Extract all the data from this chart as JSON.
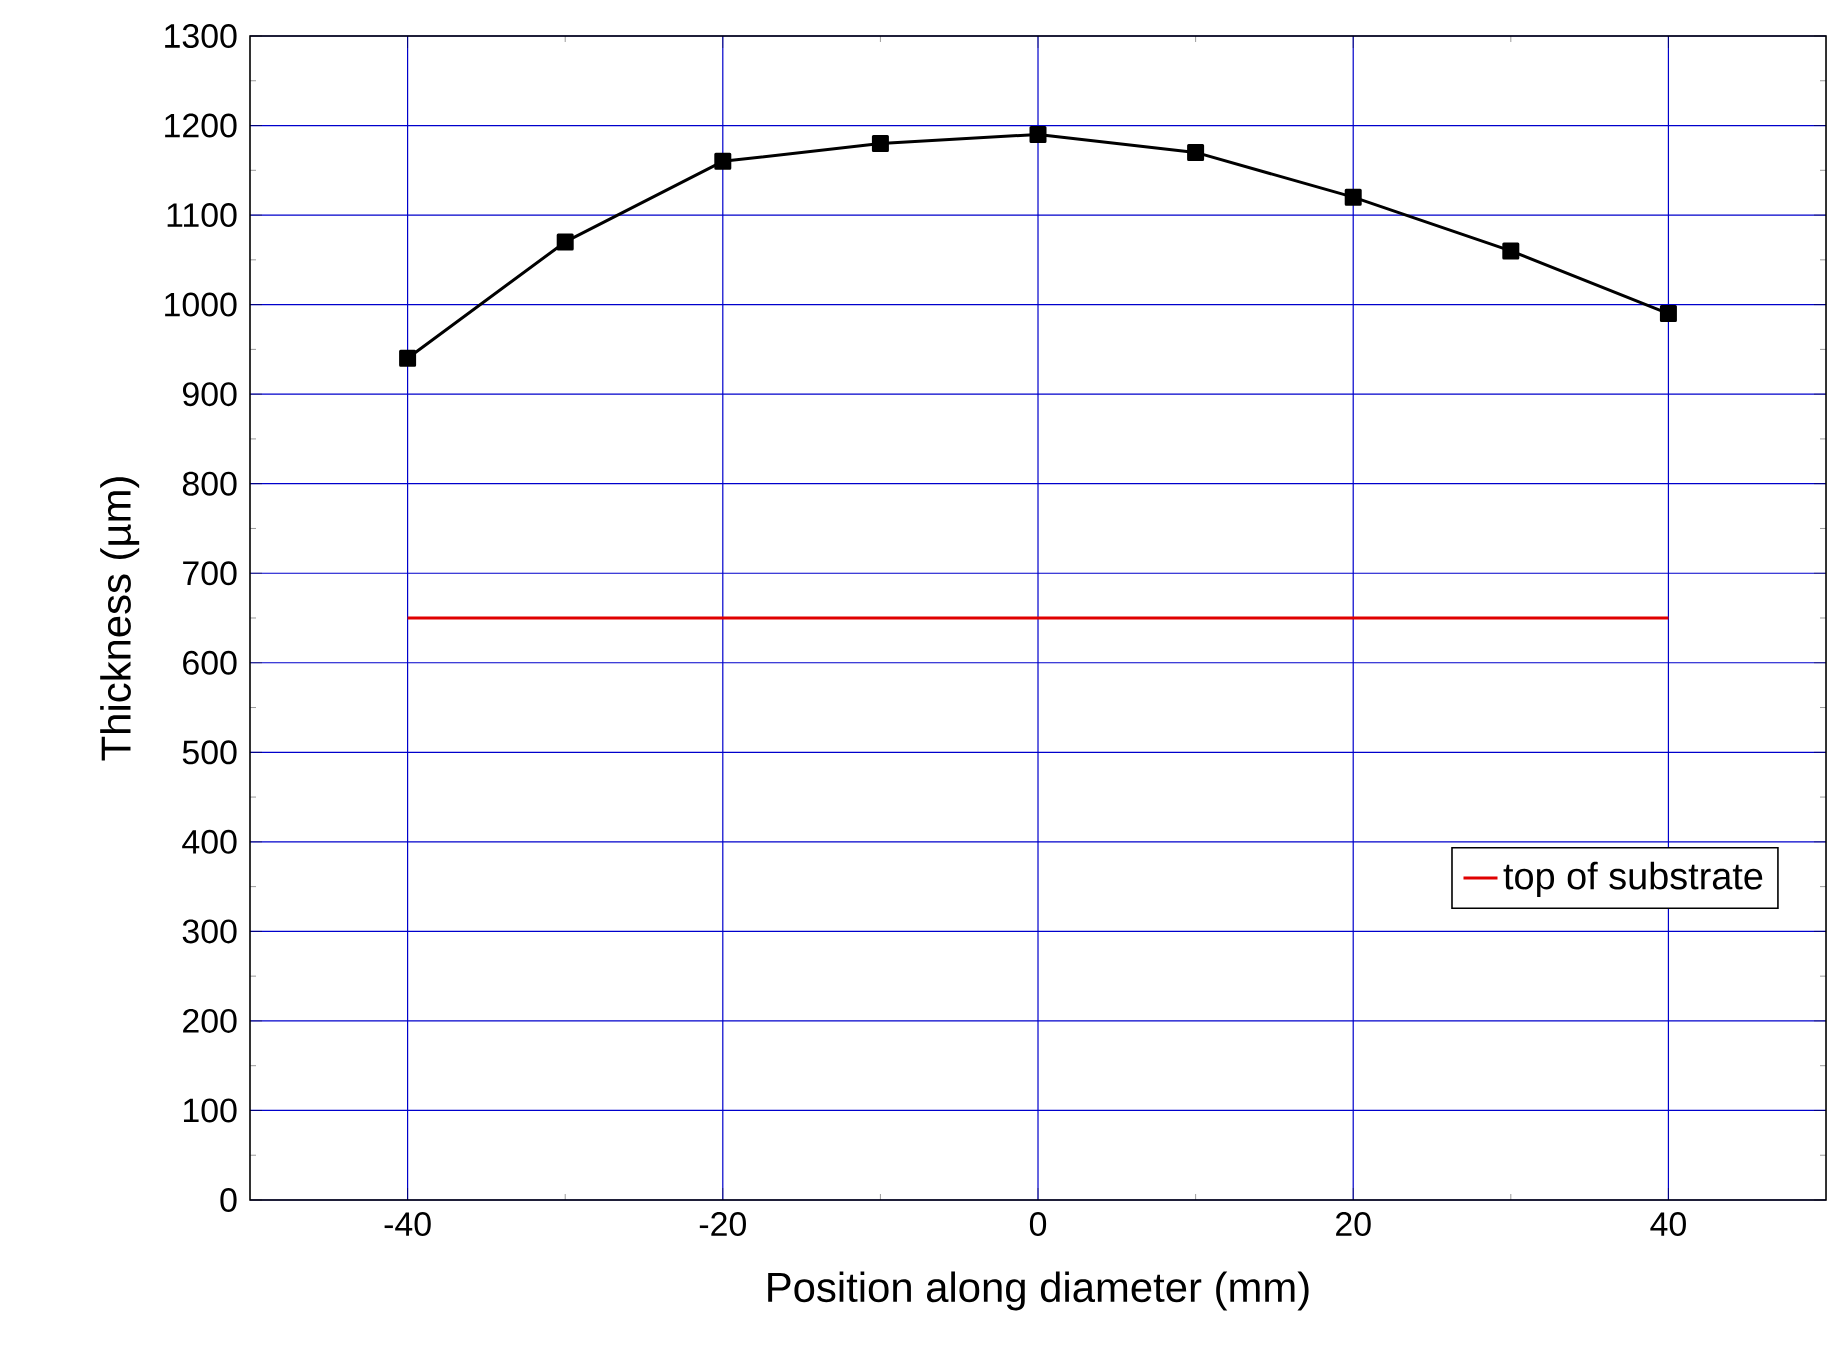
{
  "chart_data": {
    "type": "line",
    "xlabel": "Position along diameter (mm)",
    "ylabel": "Thickness (µm)",
    "xlim": [
      -50,
      50
    ],
    "xticks": [
      -40,
      -20,
      0,
      20,
      40
    ],
    "ylim": [
      0,
      1300
    ],
    "yticks": [
      0,
      100,
      200,
      300,
      400,
      500,
      600,
      700,
      800,
      900,
      1000,
      1100,
      1200,
      1300
    ],
    "grid": true,
    "legend": "bottom right",
    "line_style": "solid",
    "series": [
      {
        "color": "#000000",
        "marker": "square",
        "x": [
          -40,
          -30,
          -20,
          -10,
          0,
          10,
          20,
          30,
          40
        ],
        "values": [
          940,
          1070,
          1160,
          1180,
          1190,
          1170,
          1120,
          1060,
          990
        ]
      },
      {
        "name": "top of substrate",
        "color": "#e00000",
        "marker": "none",
        "x": [
          -40,
          40
        ],
        "values": [
          650,
          650
        ]
      }
    ]
  }
}
